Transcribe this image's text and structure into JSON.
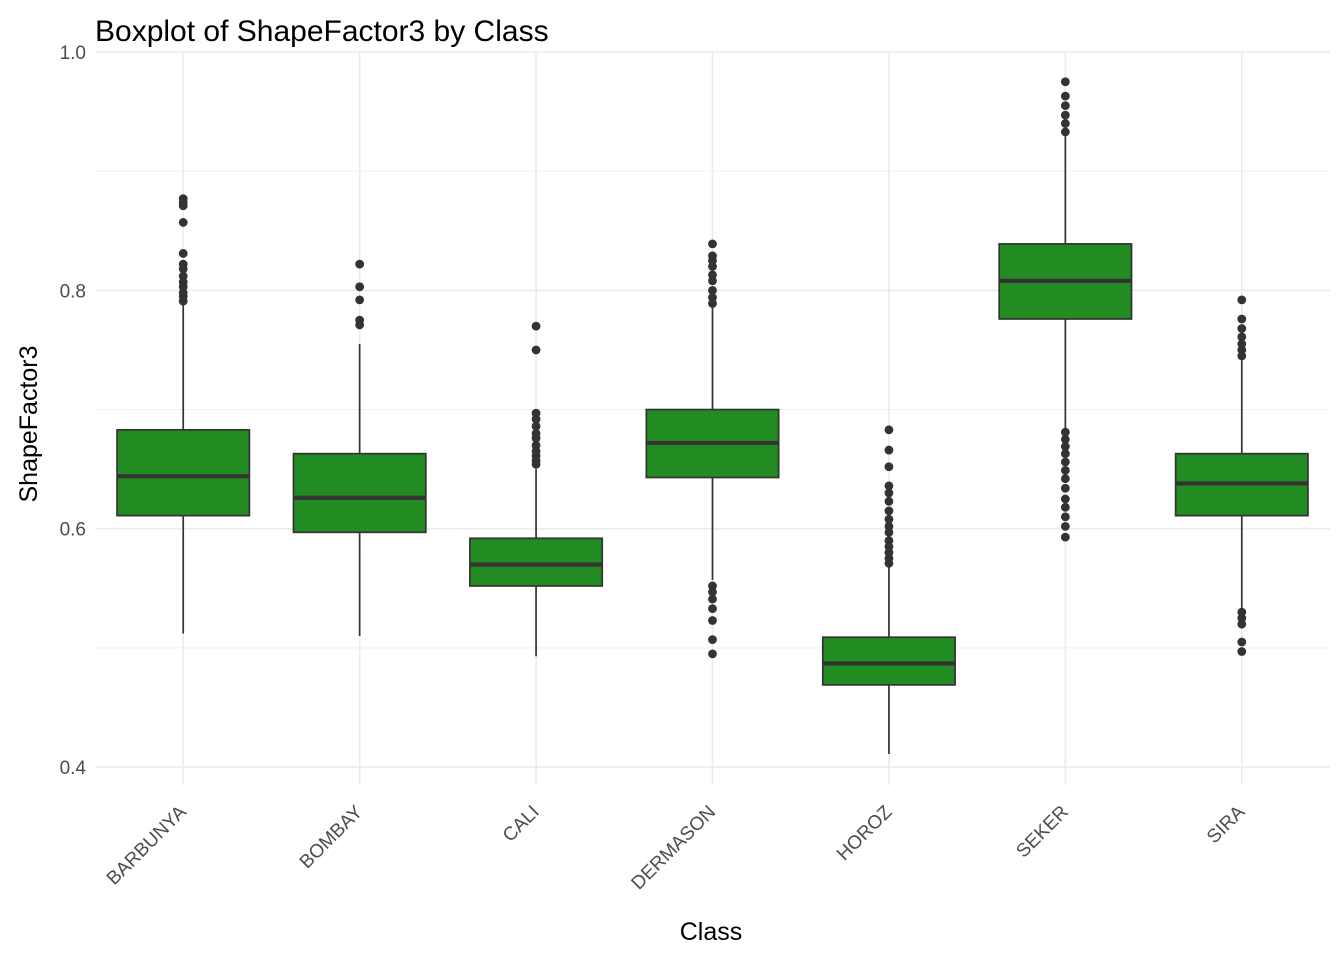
{
  "chart_data": {
    "type": "boxplot",
    "title": "Boxplot of ShapeFactor3 by Class",
    "xlabel": "Class",
    "ylabel": "ShapeFactor3",
    "ylim": [
      0.385,
      1.0
    ],
    "yticks": [
      "0.4",
      "0.6",
      "0.8",
      "1.0"
    ],
    "grid": true,
    "colors": {
      "box_fill": "#228B22",
      "box_stroke": "#333333",
      "outlier": "#333333",
      "grid": "#ebebeb"
    },
    "categories": [
      "BARBUNYA",
      "BOMBAY",
      "CALI",
      "DERMASON",
      "HOROZ",
      "SEKER",
      "SIRA"
    ],
    "boxes": [
      {
        "category": "BARBUNYA",
        "whisker_low": 0.512,
        "q1": 0.611,
        "median": 0.644,
        "q3": 0.683,
        "whisker_high": 0.789,
        "outliers": [
          0.791,
          0.795,
          0.798,
          0.803,
          0.807,
          0.812,
          0.818,
          0.822,
          0.831,
          0.857,
          0.871,
          0.874,
          0.877
        ]
      },
      {
        "category": "BOMBAY",
        "whisker_low": 0.51,
        "q1": 0.597,
        "median": 0.626,
        "q3": 0.663,
        "whisker_high": 0.755,
        "outliers": [
          0.771,
          0.775,
          0.792,
          0.803,
          0.822
        ]
      },
      {
        "category": "CALI",
        "whisker_low": 0.493,
        "q1": 0.552,
        "median": 0.57,
        "q3": 0.592,
        "whisker_high": 0.65,
        "outliers": [
          0.654,
          0.657,
          0.661,
          0.665,
          0.67,
          0.676,
          0.68,
          0.686,
          0.692,
          0.697,
          0.75,
          0.77
        ]
      },
      {
        "category": "DERMASON",
        "whisker_low": 0.557,
        "q1": 0.643,
        "median": 0.672,
        "q3": 0.7,
        "whisker_high": 0.786,
        "outliers": [
          0.495,
          0.507,
          0.523,
          0.533,
          0.541,
          0.547,
          0.552,
          0.789,
          0.794,
          0.8,
          0.808,
          0.813,
          0.82,
          0.825,
          0.829,
          0.839
        ]
      },
      {
        "category": "HOROZ",
        "whisker_low": 0.411,
        "q1": 0.469,
        "median": 0.487,
        "q3": 0.509,
        "whisker_high": 0.568,
        "outliers": [
          0.571,
          0.575,
          0.58,
          0.585,
          0.59,
          0.597,
          0.602,
          0.608,
          0.615,
          0.623,
          0.63,
          0.636,
          0.652,
          0.666,
          0.683
        ]
      },
      {
        "category": "SEKER",
        "whisker_low": 0.678,
        "q1": 0.776,
        "median": 0.808,
        "q3": 0.839,
        "whisker_high": 0.93,
        "outliers": [
          0.593,
          0.602,
          0.61,
          0.618,
          0.625,
          0.634,
          0.642,
          0.649,
          0.656,
          0.663,
          0.669,
          0.675,
          0.681,
          0.933,
          0.94,
          0.947,
          0.955,
          0.963,
          0.975
        ]
      },
      {
        "category": "SIRA",
        "whisker_low": 0.531,
        "q1": 0.611,
        "median": 0.638,
        "q3": 0.663,
        "whisker_high": 0.742,
        "outliers": [
          0.497,
          0.505,
          0.52,
          0.525,
          0.53,
          0.745,
          0.75,
          0.755,
          0.761,
          0.768,
          0.776,
          0.792
        ]
      }
    ]
  }
}
